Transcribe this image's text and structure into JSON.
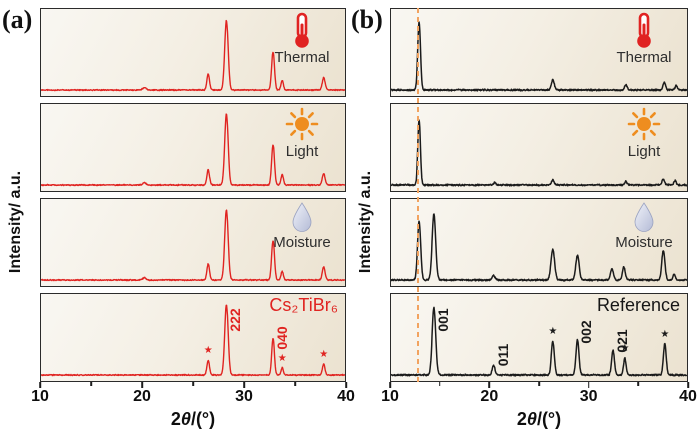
{
  "chart_data": {
    "type": "line",
    "xlabel": "2θ/(°)",
    "xlabel_parts": [
      {
        "t": "2"
      },
      {
        "t": "θ",
        "i": true
      },
      {
        "t": "/(°)"
      }
    ],
    "ylabel": "Intensity/ a.u.",
    "xlim": [
      10,
      40
    ],
    "xticks": [
      10,
      20,
      30,
      40
    ],
    "xminor": [
      15,
      25,
      35
    ],
    "star_glyph": "★",
    "grid": false,
    "legend": "none",
    "icon_colors": {
      "thermometer": "#e02322",
      "sun": "#ee8d1f",
      "droplet": "#c3cадف"
    },
    "panels": [
      {
        "label": "(a)",
        "color": "#e02421",
        "noise": 0.9,
        "series": [
          {
            "name": "Thermal",
            "icon": "thermometer-icon",
            "peaks": [
              {
                "x": 20.2,
                "h": 0.035,
                "w": 0.16
              },
              {
                "x": 26.5,
                "h": 0.22,
                "w": 0.13
              },
              {
                "x": 28.3,
                "h": 0.95,
                "w": 0.17
              },
              {
                "x": 32.9,
                "h": 0.52,
                "w": 0.14
              },
              {
                "x": 33.8,
                "h": 0.13,
                "w": 0.12
              },
              {
                "x": 37.9,
                "h": 0.17,
                "w": 0.14
              }
            ]
          },
          {
            "name": "Light",
            "icon": "sun-icon",
            "peaks": [
              {
                "x": 20.2,
                "h": 0.03,
                "w": 0.16
              },
              {
                "x": 26.5,
                "h": 0.21,
                "w": 0.13
              },
              {
                "x": 28.3,
                "h": 0.97,
                "w": 0.17
              },
              {
                "x": 32.9,
                "h": 0.55,
                "w": 0.14
              },
              {
                "x": 33.8,
                "h": 0.14,
                "w": 0.12
              },
              {
                "x": 37.9,
                "h": 0.16,
                "w": 0.14
              }
            ]
          },
          {
            "name": "Moisture",
            "icon": "droplet-icon",
            "peaks": [
              {
                "x": 20.2,
                "h": 0.03,
                "w": 0.16
              },
              {
                "x": 26.5,
                "h": 0.22,
                "w": 0.13
              },
              {
                "x": 28.3,
                "h": 0.96,
                "w": 0.17
              },
              {
                "x": 32.9,
                "h": 0.54,
                "w": 0.14
              },
              {
                "x": 33.8,
                "h": 0.12,
                "w": 0.12
              },
              {
                "x": 37.9,
                "h": 0.18,
                "w": 0.14
              }
            ]
          },
          {
            "name": "Cs₂TiBr₆ reference",
            "corner": "Cs₂TiBr₆",
            "peaks": [
              {
                "x": 26.5,
                "h": 0.2,
                "w": 0.13,
                "star": true
              },
              {
                "x": 28.3,
                "h": 0.96,
                "w": 0.17,
                "label": "222",
                "ly": 0.3
              },
              {
                "x": 32.9,
                "h": 0.5,
                "w": 0.13,
                "label": "040",
                "ly": 0.5
              },
              {
                "x": 33.8,
                "h": 0.1,
                "w": 0.11,
                "star": true
              },
              {
                "x": 37.9,
                "h": 0.15,
                "w": 0.13,
                "star": true
              }
            ]
          }
        ]
      },
      {
        "label": "(b)",
        "color": "#1b1b1b",
        "noise": 1.3,
        "dashed_line_x": 12.85,
        "dashed_color": "#f2a360",
        "series": [
          {
            "name": "Thermal",
            "icon": "thermometer-icon",
            "peaks": [
              {
                "x": 12.85,
                "h": 0.93,
                "w": 0.14
              },
              {
                "x": 26.4,
                "h": 0.14,
                "w": 0.15
              },
              {
                "x": 33.8,
                "h": 0.07,
                "w": 0.13
              },
              {
                "x": 37.7,
                "h": 0.1,
                "w": 0.13
              },
              {
                "x": 38.9,
                "h": 0.06,
                "w": 0.12
              }
            ]
          },
          {
            "name": "Light",
            "icon": "sun-icon",
            "peaks": [
              {
                "x": 12.85,
                "h": 0.9,
                "w": 0.13
              },
              {
                "x": 20.5,
                "h": 0.03,
                "w": 0.14
              },
              {
                "x": 26.4,
                "h": 0.07,
                "w": 0.14
              },
              {
                "x": 33.8,
                "h": 0.05,
                "w": 0.12
              },
              {
                "x": 37.6,
                "h": 0.08,
                "w": 0.13
              },
              {
                "x": 38.8,
                "h": 0.06,
                "w": 0.12
              }
            ]
          },
          {
            "name": "Moisture",
            "icon": "droplet-icon",
            "peaks": [
              {
                "x": 12.85,
                "h": 0.8,
                "w": 0.16
              },
              {
                "x": 14.35,
                "h": 0.9,
                "w": 0.18
              },
              {
                "x": 20.4,
                "h": 0.06,
                "w": 0.15
              },
              {
                "x": 26.4,
                "h": 0.42,
                "w": 0.18
              },
              {
                "x": 28.9,
                "h": 0.34,
                "w": 0.17
              },
              {
                "x": 32.4,
                "h": 0.16,
                "w": 0.14
              },
              {
                "x": 33.6,
                "h": 0.18,
                "w": 0.14
              },
              {
                "x": 37.6,
                "h": 0.4,
                "w": 0.16
              },
              {
                "x": 38.7,
                "h": 0.08,
                "w": 0.12
              }
            ]
          },
          {
            "name": "Reference",
            "corner": "Reference",
            "peaks": [
              {
                "x": 14.35,
                "h": 0.92,
                "w": 0.18,
                "label": "001",
                "ly": 0.3
              },
              {
                "x": 20.4,
                "h": 0.13,
                "w": 0.14,
                "label": "011",
                "ly": 0.7
              },
              {
                "x": 26.4,
                "h": 0.46,
                "w": 0.15,
                "star": true
              },
              {
                "x": 28.9,
                "h": 0.48,
                "w": 0.15,
                "label": "002",
                "ly": 0.44
              },
              {
                "x": 32.5,
                "h": 0.34,
                "w": 0.14,
                "label": "021",
                "ly": 0.54
              },
              {
                "x": 33.7,
                "h": 0.23,
                "w": 0.13,
                "star": true
              },
              {
                "x": 37.75,
                "h": 0.43,
                "w": 0.14,
                "star": true
              }
            ]
          }
        ]
      }
    ]
  }
}
